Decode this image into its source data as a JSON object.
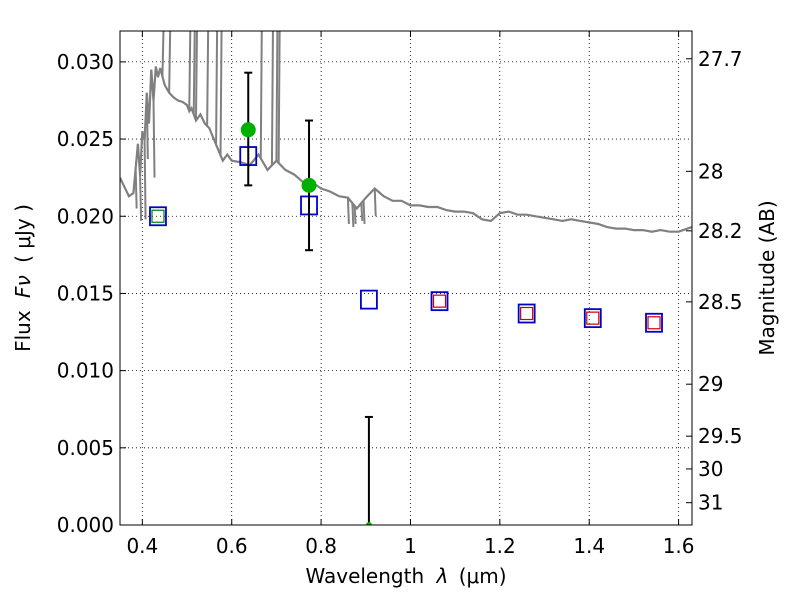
{
  "chart_data": {
    "type": "scatter",
    "xlabel_prefix": "Wavelength",
    "xlabel_symbol": "λ",
    "xlabel_unit": "(μm)",
    "ylabel_prefix": "Flux",
    "ylabel_symbol": "Fν",
    "ylabel_unit": "( μJy )",
    "y2label": "Magnitude (AB)",
    "xlim": [
      0.35,
      1.63
    ],
    "ylim": [
      0.0,
      0.032
    ],
    "grid": true,
    "x_ticks": [
      {
        "value": 0.4,
        "label": "0.4"
      },
      {
        "value": 0.6,
        "label": "0.6"
      },
      {
        "value": 0.8,
        "label": "0.8"
      },
      {
        "value": 1.0,
        "label": "1"
      },
      {
        "value": 1.2,
        "label": "1.2"
      },
      {
        "value": 1.4,
        "label": "1.4"
      },
      {
        "value": 1.6,
        "label": "1.6"
      }
    ],
    "y_ticks": [
      {
        "value": 0.0,
        "label": "0.000"
      },
      {
        "value": 0.005,
        "label": "0.005"
      },
      {
        "value": 0.01,
        "label": "0.010"
      },
      {
        "value": 0.015,
        "label": "0.015"
      },
      {
        "value": 0.02,
        "label": "0.020"
      },
      {
        "value": 0.025,
        "label": "0.025"
      },
      {
        "value": 0.03,
        "label": "0.030"
      }
    ],
    "y2_ticks": [
      {
        "value": 27.7,
        "label": "27.7"
      },
      {
        "value": 28.0,
        "label": "28"
      },
      {
        "value": 28.2,
        "label": "28.2"
      },
      {
        "value": 28.5,
        "label": "28.5"
      },
      {
        "value": 29.0,
        "label": "29"
      },
      {
        "value": 29.5,
        "label": "29.5"
      },
      {
        "value": 30.0,
        "label": "30"
      },
      {
        "value": 31.0,
        "label": "31"
      }
    ],
    "series": [
      {
        "kind": "line",
        "color": "#808080",
        "points": [
          [
            0.35,
            0.0225
          ],
          [
            0.37,
            0.0213
          ],
          [
            0.38,
            0.0215
          ],
          [
            0.39,
            0.0247
          ],
          [
            0.395,
            0.0226
          ],
          [
            0.4,
            0.0255
          ],
          [
            0.405,
            0.0249
          ],
          [
            0.41,
            0.028
          ],
          [
            0.415,
            0.026
          ],
          [
            0.42,
            0.0295
          ],
          [
            0.425,
            0.0275
          ],
          [
            0.43,
            0.0297
          ],
          [
            0.435,
            0.029
          ],
          [
            0.44,
            0.0296
          ],
          [
            0.45,
            0.0285
          ],
          [
            0.46,
            0.028
          ],
          [
            0.47,
            0.0277
          ],
          [
            0.48,
            0.0275
          ],
          [
            0.49,
            0.0274
          ],
          [
            0.5,
            0.0272
          ],
          [
            0.505,
            0.0268
          ],
          [
            0.51,
            0.027
          ],
          [
            0.52,
            0.0262
          ],
          [
            0.53,
            0.0266
          ],
          [
            0.54,
            0.026
          ],
          [
            0.55,
            0.0257
          ],
          [
            0.56,
            0.025
          ],
          [
            0.57,
            0.0243
          ],
          [
            0.58,
            0.0236
          ],
          [
            0.59,
            0.024
          ],
          [
            0.6,
            0.0236
          ],
          [
            0.62,
            0.0235
          ],
          [
            0.64,
            0.0233
          ],
          [
            0.66,
            0.024
          ],
          [
            0.68,
            0.023
          ],
          [
            0.7,
            0.0236
          ],
          [
            0.72,
            0.023
          ],
          [
            0.74,
            0.0227
          ],
          [
            0.76,
            0.0222
          ],
          [
            0.78,
            0.0222
          ],
          [
            0.8,
            0.0218
          ],
          [
            0.82,
            0.0216
          ],
          [
            0.84,
            0.0213
          ],
          [
            0.86,
            0.0212
          ],
          [
            0.88,
            0.0205
          ],
          [
            0.9,
            0.0212
          ],
          [
            0.92,
            0.0218
          ],
          [
            0.94,
            0.0213
          ],
          [
            0.96,
            0.021
          ],
          [
            0.98,
            0.021
          ],
          [
            1.0,
            0.0207
          ],
          [
            1.02,
            0.0207
          ],
          [
            1.04,
            0.0206
          ],
          [
            1.06,
            0.0206
          ],
          [
            1.08,
            0.0204
          ],
          [
            1.1,
            0.0203
          ],
          [
            1.12,
            0.0203
          ],
          [
            1.14,
            0.0202
          ],
          [
            1.16,
            0.0198
          ],
          [
            1.18,
            0.0197
          ],
          [
            1.2,
            0.0202
          ],
          [
            1.22,
            0.0203
          ],
          [
            1.24,
            0.0201
          ],
          [
            1.26,
            0.0201
          ],
          [
            1.28,
            0.02
          ],
          [
            1.3,
            0.0199
          ],
          [
            1.32,
            0.0198
          ],
          [
            1.34,
            0.0197
          ],
          [
            1.36,
            0.0198
          ],
          [
            1.38,
            0.0197
          ],
          [
            1.4,
            0.0196
          ],
          [
            1.42,
            0.0195
          ],
          [
            1.44,
            0.0193
          ],
          [
            1.46,
            0.0192
          ],
          [
            1.48,
            0.0192
          ],
          [
            1.5,
            0.0191
          ],
          [
            1.52,
            0.0191
          ],
          [
            1.54,
            0.019
          ],
          [
            1.56,
            0.0191
          ],
          [
            1.58,
            0.019
          ],
          [
            1.6,
            0.019
          ],
          [
            1.62,
            0.0192
          ],
          [
            1.63,
            0.0193
          ]
        ],
        "spikes": [
          [
            0.385,
            0.0205
          ],
          [
            0.395,
            0.0197
          ],
          [
            0.405,
            0.0198
          ],
          [
            0.41,
            0.0237
          ],
          [
            0.425,
            0.0225
          ],
          [
            0.445,
            0.032
          ],
          [
            0.46,
            0.032
          ],
          [
            0.505,
            0.032
          ],
          [
            0.515,
            0.032
          ],
          [
            0.52,
            0.032
          ],
          [
            0.545,
            0.032
          ],
          [
            0.565,
            0.032
          ],
          [
            0.575,
            0.032
          ],
          [
            0.665,
            0.032
          ],
          [
            0.69,
            0.032
          ],
          [
            0.7,
            0.032
          ],
          [
            0.705,
            0.032
          ],
          [
            0.86,
            0.0195
          ],
          [
            0.87,
            0.0193
          ],
          [
            0.875,
            0.0195
          ],
          [
            0.89,
            0.0197
          ],
          [
            0.895,
            0.0195
          ],
          [
            0.92,
            0.02
          ]
        ]
      },
      {
        "kind": "observed",
        "color": "#00b000",
        "points": [
          {
            "x": 0.637,
            "y": 0.0256,
            "err_low": 0.022,
            "err_high": 0.0293
          },
          {
            "x": 0.773,
            "y": 0.022,
            "err_low": 0.0178,
            "err_high": 0.0262
          },
          {
            "x": 0.907,
            "y": 0.0,
            "err_low": 0.0,
            "err_high": 0.007
          }
        ]
      },
      {
        "kind": "model_blue_squares",
        "color": "#0000cc",
        "points": [
          [
            0.435,
            0.02
          ],
          [
            0.637,
            0.0239
          ],
          [
            0.773,
            0.0207
          ],
          [
            0.907,
            0.0146
          ],
          [
            1.065,
            0.0145
          ],
          [
            1.26,
            0.0137
          ],
          [
            1.408,
            0.0134
          ],
          [
            1.545,
            0.0131
          ]
        ]
      },
      {
        "kind": "model_red_squares",
        "color": "#cc0000",
        "points": [
          [
            1.065,
            0.0145
          ],
          [
            1.26,
            0.0137
          ],
          [
            1.408,
            0.0134
          ],
          [
            1.545,
            0.0131
          ]
        ]
      },
      {
        "kind": "model_green_square",
        "color": "#008000",
        "points": [
          [
            0.435,
            0.02
          ]
        ]
      }
    ]
  }
}
